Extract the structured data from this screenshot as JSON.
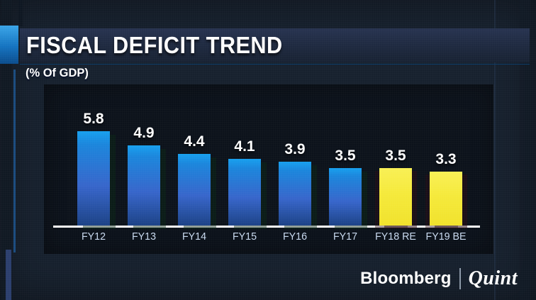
{
  "header": {
    "title": "FISCAL DEFICIT TREND",
    "subtitle": "(% Of GDP)"
  },
  "chart_data": {
    "type": "bar",
    "title": "FISCAL DEFICIT TREND",
    "subtitle": "(% Of GDP)",
    "categories": [
      "FY12",
      "FY13",
      "FY14",
      "FY15",
      "FY16",
      "FY17",
      "FY18 RE",
      "FY19 BE"
    ],
    "values": [
      5.8,
      4.9,
      4.4,
      4.1,
      3.9,
      3.5,
      3.5,
      3.3
    ],
    "bar_styles": [
      "blue",
      "blue",
      "blue",
      "blue",
      "blue",
      "blue",
      "yellow",
      "yellow"
    ],
    "value_labels_shown": true,
    "xlabel": "",
    "ylabel": "% of GDP",
    "ylim": [
      0,
      6.5
    ],
    "grid": false,
    "legend": "none"
  },
  "footer": {
    "brand_primary": "Bloomberg",
    "brand_divider": "|",
    "brand_secondary": "Quint"
  },
  "colors": {
    "accent_line": "#1577c5",
    "subtitle_bar_top": "#4db4f0",
    "subtitle_bar_mid": "#1584d4",
    "subtitle_bar_bottom": "#0b569d",
    "bar_blue_top": "#17a0ef",
    "bar_blue_mid": "#3766cb",
    "bar_blue_bottom": "#1c4286",
    "bar_yellow": "#f5e93b",
    "value_label": "#ffffff",
    "axis_label": "#c9daf0",
    "axis_line": "#ffffff",
    "panel_bg": "#0c121b",
    "background": "#17212e"
  }
}
